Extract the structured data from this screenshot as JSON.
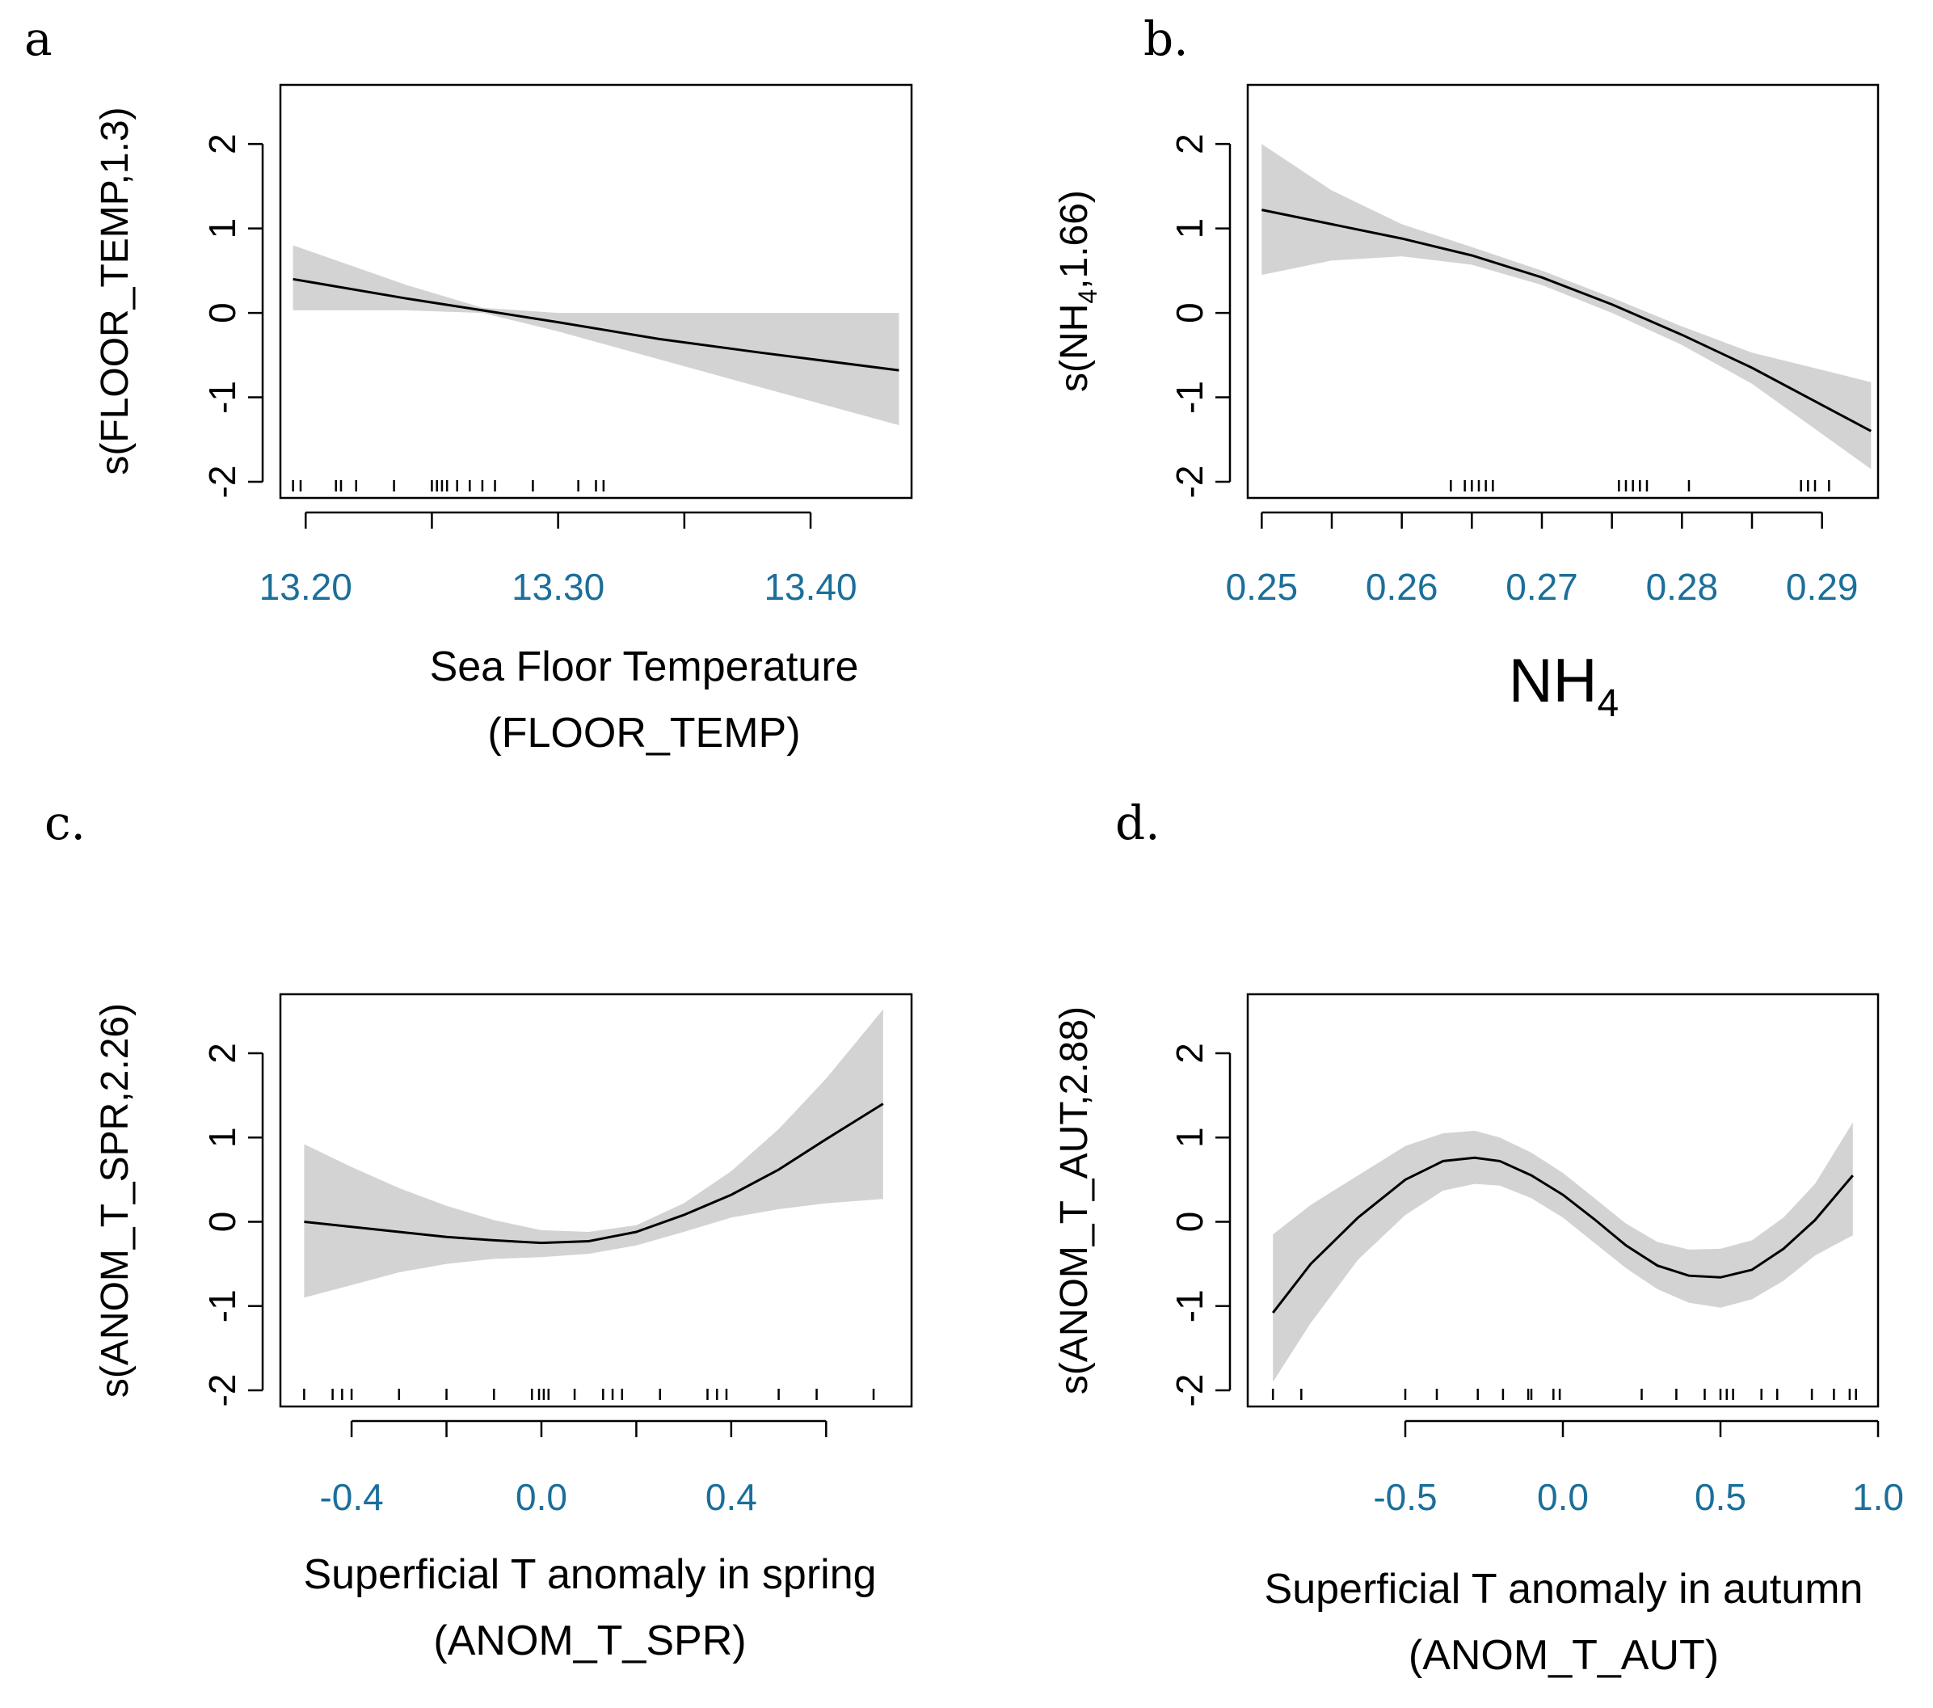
{
  "colors": {
    "band": "#d3d3d3",
    "line": "#000000",
    "tick_text": "#1b6f9a"
  },
  "chart_data": [
    {
      "panel_letter": "a",
      "type": "line",
      "ylabel": "s(FLOOR_TEMP,1.3)",
      "ylabel_parts": [
        "s(FLOOR_TEMP,1.3)"
      ],
      "xlabel_lines": [
        "Sea Floor Temperature",
        "(FLOOR_TEMP)"
      ],
      "xlim": [
        13.19,
        13.44
      ],
      "ylim": [
        -2,
        2.7
      ],
      "xticks": [
        13.2,
        13.25,
        13.3,
        13.35,
        13.4
      ],
      "xtick_labels": [
        "13.20",
        "",
        "13.30",
        "",
        "13.40"
      ],
      "yticks": [
        -2,
        -1,
        0,
        1,
        2
      ],
      "ytick_labels": [
        "-2",
        "-1",
        "0",
        "1",
        "2"
      ],
      "fit": {
        "x": [
          13.195,
          13.24,
          13.27,
          13.3,
          13.34,
          13.38,
          13.435
        ],
        "y": [
          0.4,
          0.17,
          0.03,
          -0.11,
          -0.31,
          -0.47,
          -0.68
        ],
        "upper": [
          0.8,
          0.33,
          0.06,
          0.0,
          0.0,
          0.0,
          0.0
        ],
        "lower": [
          0.03,
          0.03,
          0.0,
          -0.22,
          -0.55,
          -0.88,
          -1.33
        ]
      },
      "rug": [
        13.195,
        13.198,
        13.212,
        13.214,
        13.22,
        13.235,
        13.25,
        13.252,
        13.254,
        13.256,
        13.26,
        13.265,
        13.27,
        13.275,
        13.29,
        13.308,
        13.315,
        13.318
      ]
    },
    {
      "panel_letter": "b.",
      "type": "line",
      "ylabel": "s(NH4,1.66)",
      "ylabel_parts": [
        "s(NH",
        "4",
        ",1.66)"
      ],
      "xlabel_lines": [
        "NH4"
      ],
      "xlabel_parts": [
        "NH",
        "4"
      ],
      "xlim": [
        0.249,
        0.294
      ],
      "ylim": [
        -2,
        2.7
      ],
      "xticks": [
        0.25,
        0.255,
        0.26,
        0.265,
        0.27,
        0.275,
        0.28,
        0.285,
        0.29
      ],
      "xtick_labels": [
        "0.25",
        "",
        "0.26",
        "",
        "0.27",
        "",
        "0.28",
        "",
        "0.29"
      ],
      "yticks": [
        -2,
        -1,
        0,
        1,
        2
      ],
      "ytick_labels": [
        "-2",
        "-1",
        "0",
        "1",
        "2"
      ],
      "fit": {
        "x": [
          0.25,
          0.255,
          0.26,
          0.265,
          0.27,
          0.275,
          0.28,
          0.285,
          0.2935
        ],
        "y": [
          1.22,
          1.05,
          0.88,
          0.68,
          0.42,
          0.1,
          -0.26,
          -0.65,
          -1.4
        ],
        "upper": [
          2.0,
          1.45,
          1.05,
          0.78,
          0.5,
          0.18,
          -0.16,
          -0.47,
          -0.82
        ],
        "lower": [
          0.45,
          0.62,
          0.67,
          0.57,
          0.33,
          0.0,
          -0.38,
          -0.84,
          -1.85
        ]
      },
      "rug": [
        0.2635,
        0.2645,
        0.265,
        0.2655,
        0.266,
        0.2665,
        0.2755,
        0.276,
        0.2765,
        0.277,
        0.2775,
        0.2805,
        0.2885,
        0.289,
        0.2895,
        0.2905
      ]
    },
    {
      "panel_letter": "c.",
      "type": "line",
      "ylabel": "s(ANOM_T_SPR,2.26)",
      "ylabel_parts": [
        "s(ANOM_T_SPR,2.26)"
      ],
      "xlabel_lines": [
        "Superficial T anomaly in spring",
        "(ANOM_T_SPR)"
      ],
      "xlim": [
        -0.55,
        0.78
      ],
      "ylim": [
        -2,
        2.7
      ],
      "xticks": [
        -0.4,
        -0.2,
        0.0,
        0.2,
        0.4,
        0.6
      ],
      "xtick_labels": [
        "-0.4",
        "",
        "0.0",
        "",
        "0.4",
        ""
      ],
      "yticks": [
        -2,
        -1,
        0,
        1,
        2
      ],
      "ytick_labels": [
        "-2",
        "-1",
        "0",
        "1",
        "2"
      ],
      "fit": {
        "x": [
          -0.5,
          -0.4,
          -0.3,
          -0.2,
          -0.1,
          0.0,
          0.1,
          0.2,
          0.3,
          0.4,
          0.5,
          0.6,
          0.72
        ],
        "y": [
          0.0,
          -0.06,
          -0.12,
          -0.18,
          -0.22,
          -0.25,
          -0.23,
          -0.12,
          0.08,
          0.32,
          0.62,
          0.98,
          1.4
        ],
        "upper": [
          0.92,
          0.65,
          0.4,
          0.19,
          0.02,
          -0.1,
          -0.12,
          -0.04,
          0.22,
          0.6,
          1.1,
          1.7,
          2.52
        ],
        "lower": [
          -0.9,
          -0.75,
          -0.6,
          -0.5,
          -0.44,
          -0.42,
          -0.38,
          -0.28,
          -0.12,
          0.05,
          0.15,
          0.22,
          0.27
        ]
      },
      "rug": [
        -0.5,
        -0.44,
        -0.42,
        -0.4,
        -0.3,
        -0.2,
        -0.1,
        -0.02,
        -0.005,
        0.005,
        0.015,
        0.07,
        0.13,
        0.15,
        0.17,
        0.25,
        0.35,
        0.37,
        0.39,
        0.5,
        0.58,
        0.7
      ]
    },
    {
      "panel_letter": "d.",
      "type": "line",
      "ylabel": "s(ANOM_T_AUT,2.88)",
      "ylabel_parts": [
        "s(ANOM_T_AUT,2.88)"
      ],
      "xlabel_lines": [
        "Superficial T anomaly in autumn",
        "(ANOM_T_AUT)"
      ],
      "xlim": [
        -1.0,
        1.0
      ],
      "ylim": [
        -2,
        2.7
      ],
      "xticks": [
        -0.5,
        0.0,
        0.5,
        1.0
      ],
      "xtick_labels": [
        "-0.5",
        "0.0",
        "0.5",
        "1.0"
      ],
      "yticks": [
        -2,
        -1,
        0,
        1,
        2
      ],
      "ytick_labels": [
        "-2",
        "-1",
        "0",
        "1",
        "2"
      ],
      "fit": {
        "x": [
          -0.92,
          -0.8,
          -0.65,
          -0.5,
          -0.38,
          -0.28,
          -0.2,
          -0.1,
          0.0,
          0.1,
          0.2,
          0.3,
          0.4,
          0.5,
          0.6,
          0.7,
          0.8,
          0.92
        ],
        "y": [
          -1.08,
          -0.5,
          0.05,
          0.5,
          0.72,
          0.76,
          0.72,
          0.55,
          0.32,
          0.03,
          -0.28,
          -0.52,
          -0.64,
          -0.66,
          -0.57,
          -0.32,
          0.02,
          0.55
        ],
        "upper": [
          -0.15,
          0.2,
          0.55,
          0.9,
          1.05,
          1.08,
          1.0,
          0.82,
          0.58,
          0.28,
          -0.02,
          -0.24,
          -0.33,
          -0.32,
          -0.22,
          0.05,
          0.45,
          1.18
        ],
        "lower": [
          -1.9,
          -1.2,
          -0.45,
          0.08,
          0.37,
          0.45,
          0.43,
          0.28,
          0.05,
          -0.25,
          -0.55,
          -0.8,
          -0.96,
          -1.02,
          -0.92,
          -0.7,
          -0.4,
          -0.16
        ]
      },
      "rug": [
        -0.92,
        -0.83,
        -0.5,
        -0.4,
        -0.27,
        -0.19,
        -0.11,
        -0.1,
        -0.03,
        -0.01,
        0.25,
        0.36,
        0.45,
        0.5,
        0.52,
        0.54,
        0.63,
        0.68,
        0.79,
        0.86,
        0.91,
        0.93
      ]
    }
  ]
}
